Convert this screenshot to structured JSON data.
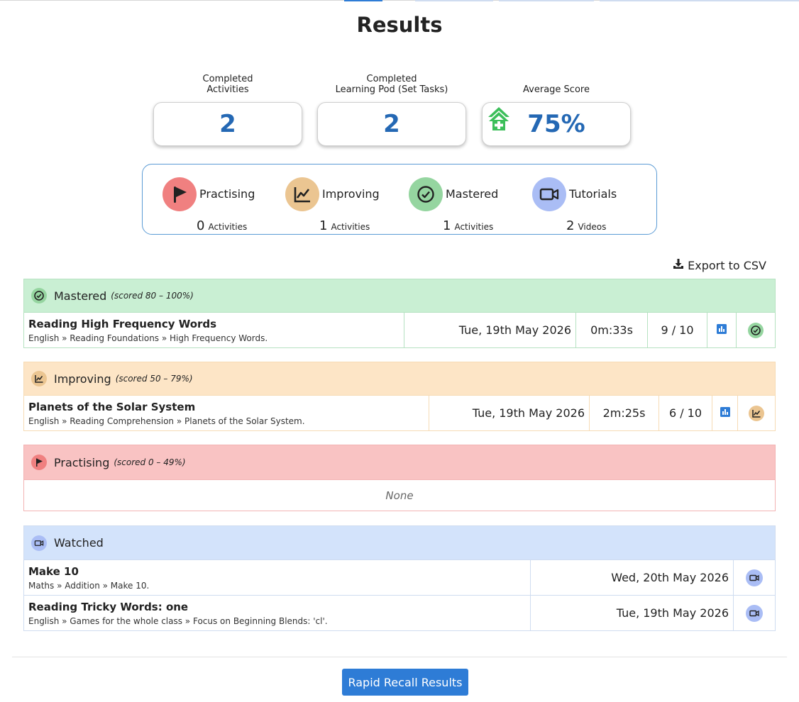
{
  "page": {
    "title": "Results"
  },
  "stats": [
    {
      "label_line1": "Completed",
      "label_line2": "Activities",
      "value": "2"
    },
    {
      "label_line1": "Completed",
      "label_line2": "Learning Pod (Set Tasks)",
      "value": "2"
    },
    {
      "label_line1": "",
      "label_line2": "Average Score",
      "value": "75%",
      "icon": "trend-up-house-icon"
    }
  ],
  "summary": [
    {
      "label": "Practising",
      "count": "0",
      "unit": "Activities",
      "icon": "flag-icon",
      "color": "#f08080"
    },
    {
      "label": "Improving",
      "count": "1",
      "unit": "Activities",
      "icon": "chart-line-icon",
      "color": "#ebc591"
    },
    {
      "label": "Mastered",
      "count": "1",
      "unit": "Activities",
      "icon": "check-circle-icon",
      "color": "#95d5a0"
    },
    {
      "label": "Tutorials",
      "count": "2",
      "unit": "Videos",
      "icon": "video-icon",
      "color": "#aabdf5"
    }
  ],
  "export": {
    "label": "Export to CSV",
    "icon": "download-icon"
  },
  "sections": {
    "mastered": {
      "title": "Mastered",
      "note": "(scored 80 – 100%)",
      "header_color": "#c9efd3",
      "border_color": "#b6e2c1",
      "rows": [
        {
          "title": "Reading High Frequency Words",
          "path": "English » Reading Foundations » High Frequency Words.",
          "date": "Tue, 19th May 2026",
          "time": "0m:33s",
          "score": "9 / 10"
        }
      ]
    },
    "improving": {
      "title": "Improving",
      "note": "(scored 50 – 79%)",
      "header_color": "#fde5c6",
      "border_color": "#f6dbb5",
      "rows": [
        {
          "title": "Planets of the Solar System",
          "path": "English » Reading Comprehension » Planets of the Solar System.",
          "date": "Tue, 19th May 2026",
          "time": "2m:25s",
          "score": "6 / 10"
        }
      ]
    },
    "practising": {
      "title": "Practising",
      "note": "(scored 0 – 49%)",
      "header_color": "#f9c3c3",
      "border_color": "#f3b4b4",
      "empty_text": "None"
    },
    "watched": {
      "title": "Watched",
      "header_color": "#d3e3fb",
      "border_color": "#cfdcf0",
      "rows": [
        {
          "title": "Make 10",
          "path": "Maths » Addition » Make 10.",
          "date": "Wed, 20th May 2026"
        },
        {
          "title": "Reading Tricky Words: one",
          "path": "English » Games for the whole class » Focus on Beginning Blends: 'cl'.",
          "date": "Tue, 19th May 2026"
        }
      ]
    }
  },
  "footer": {
    "button_label": "Rapid Recall Results"
  },
  "colors": {
    "accent": "#2468b4",
    "button": "#2e7cd6",
    "stats_icon": "#2e7cd6"
  }
}
